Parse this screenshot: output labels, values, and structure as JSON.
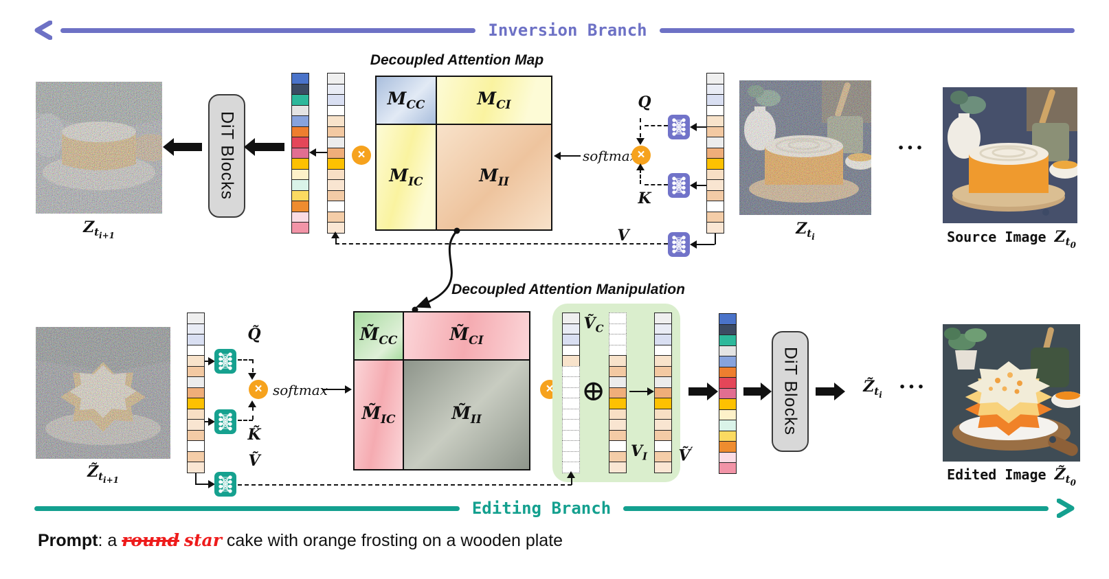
{
  "branches": {
    "inversion": "Inversion Branch",
    "editing": "Editing Branch"
  },
  "attention_map": {
    "title": "Decoupled Attention Map",
    "cc": {
      "base": "M",
      "sub": "CC"
    },
    "ci": {
      "base": "M",
      "sub": "CI"
    },
    "ic": {
      "base": "M",
      "sub": "IC"
    },
    "ii": {
      "base": "M",
      "sub": "II"
    }
  },
  "manipulation": {
    "title": "Decoupled Attention Manipulation",
    "cc": {
      "base": "M̃",
      "sub": "CC"
    },
    "ci": {
      "base": "M̃",
      "sub": "CI"
    },
    "ic": {
      "base": "M̃",
      "sub": "IC"
    },
    "ii": {
      "base": "M̃",
      "sub": "II"
    }
  },
  "qkv": {
    "q": "Q",
    "k": "K",
    "v": "V",
    "qt": "Q̃",
    "kt": "K̃",
    "vt": "Ṽ",
    "softmax": "softmax",
    "times": "×",
    "oplus": "⊕"
  },
  "green_box": {
    "vc": {
      "base": "Ṽ",
      "sub": "C"
    },
    "vi": {
      "base": "V",
      "sub": "I"
    },
    "vprime": {
      "base": "Ṽ",
      "sup": "′"
    }
  },
  "dit": {
    "label": "DiT Blocks"
  },
  "captions": {
    "z_next": {
      "base": "Z",
      "sub": "t",
      "subsub": "i+1"
    },
    "z_cur": {
      "base": "Z",
      "sub": "t",
      "subsub": "i"
    },
    "source_prefix": "Source Image ",
    "source": {
      "base": "Z",
      "sub": "t",
      "subsub": "0"
    },
    "z_next_t": {
      "base": "Z̃",
      "sub": "t",
      "subsub": "i+1"
    },
    "z_cur_t": {
      "base": "Z̃",
      "sub": "t",
      "subsub": "i"
    },
    "edited_prefix": "Edited Image ",
    "edited": {
      "base": "Z̃",
      "sub": "t",
      "subsub": "0"
    },
    "ellipsis": "···"
  },
  "prompt": {
    "segments": [
      {
        "text": "Prompt",
        "style": "plabel"
      },
      {
        "text": ": a ",
        "style": "plain"
      },
      {
        "text": "round",
        "style": "removed"
      },
      {
        "text": " ",
        "style": "plain"
      },
      {
        "text": "star",
        "style": "added"
      },
      {
        "text": " cake with orange frosting on a wooden plate",
        "style": "plain"
      }
    ]
  },
  "columns": {
    "colorful": [
      "#4a73c9",
      "#3c4b63",
      "#2db89b",
      "#e4e4e4",
      "#87a3dd",
      "#ee7e2f",
      "#e44659",
      "#e16e91",
      "#fdc101",
      "#fdf1c9",
      "#daf3e9",
      "#fbda61",
      "#ee8c2f",
      "#fbdce4",
      "#f294a7"
    ],
    "light": [
      "#efefef",
      "#e9ecf5",
      "#d9dff2",
      "#ffffff",
      "#f8e3cb",
      "#f3c9a2",
      "#ececec",
      "#efae7a",
      "#fdc101",
      "#f8dfc4",
      "#f9e5d1",
      "#f3cba6",
      "#ffffff",
      "#f4cda8",
      "#fae6d3"
    ],
    "vc": [
      "#efefef",
      "#e9ecf5",
      "#d9dff2",
      "#ffffff",
      "#f8e3cb",
      null,
      null,
      null,
      null,
      null,
      null,
      null,
      null,
      null,
      null
    ],
    "vi": [
      null,
      null,
      null,
      null,
      "#f8e3cb",
      "#f3c9a2",
      "#ececec",
      "#efae7a",
      "#fdc101",
      "#f8dfc4",
      "#f9e5d1",
      "#f3cba6",
      "#ffffff",
      "#f4cda8",
      "#fae6d3"
    ],
    "vprime": [
      "#efefef",
      "#e9ecf5",
      "#d9dff2",
      "#ffffff",
      "#f8e3cb",
      "#f3c9a2",
      "#ececec",
      "#efae7a",
      "#fdc101",
      "#f8dfc4",
      "#f9e5d1",
      "#f3cba6",
      "#ffffff",
      "#f4cda8",
      "#fae6d3"
    ]
  },
  "colors": {
    "purple": "#6d71c5",
    "teal": "#14a08f",
    "accentOrange": "#f6a21d",
    "iconPurple": "#7173c9",
    "iconTeal": "#16a18f",
    "greenBox": "#daeecd",
    "mccA": "#a9bedd",
    "mccB": "#e2eaf5",
    "myA": "#faf3a0",
    "myB": "#fdfbd6",
    "miiA": "#eec49e",
    "miiB": "#f8e2ca",
    "mtccA": "#a8dba0",
    "mtccB": "#dff0d8",
    "mpkA": "#f5abb1",
    "mpkB": "#fbd5d8",
    "mtiA": "#8e958b",
    "mtiB": "#c8ccc1",
    "red": "#ee1b1b",
    "ditBg": "#d8d8d8"
  }
}
